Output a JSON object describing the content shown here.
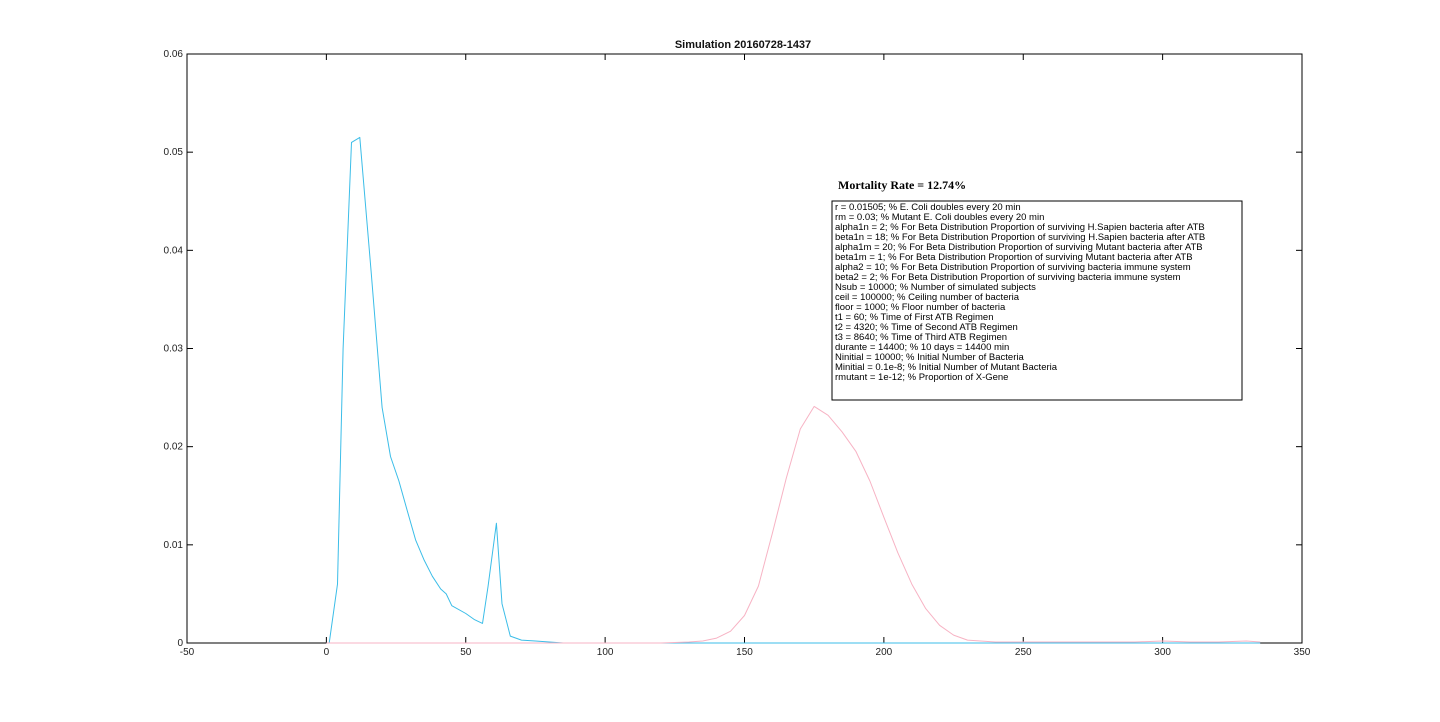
{
  "chart_data": {
    "type": "line",
    "title": "Simulation 20160728-1437",
    "xlabel": "",
    "ylabel": "",
    "xlim": [
      -50,
      350
    ],
    "ylim": [
      0,
      0.06
    ],
    "x_ticks": [
      -50,
      0,
      50,
      100,
      150,
      200,
      250,
      300,
      350
    ],
    "x_tick_labels": [
      "-50",
      "0",
      "50",
      "100",
      "150",
      "200",
      "250",
      "300",
      "350"
    ],
    "y_ticks": [
      0,
      0.01,
      0.02,
      0.03,
      0.04,
      0.05,
      0.06
    ],
    "y_tick_labels": [
      "0",
      "0.01",
      "0.02",
      "0.03",
      "0.04",
      "0.05",
      "0.06"
    ],
    "grid": false,
    "series": [
      {
        "color": "#3bbde8",
        "x": [
          0,
          1,
          4,
          6,
          9,
          12,
          16,
          20,
          23,
          26,
          29,
          32,
          35,
          38,
          41,
          43,
          45,
          50,
          53,
          56,
          58,
          61,
          63,
          66,
          70,
          75,
          80,
          85,
          90,
          100,
          150,
          200,
          250,
          300,
          335
        ],
        "y": [
          0,
          0,
          0.006,
          0.03,
          0.051,
          0.0515,
          0.038,
          0.024,
          0.019,
          0.0165,
          0.0135,
          0.0105,
          0.0085,
          0.0068,
          0.0055,
          0.005,
          0.0038,
          0.003,
          0.0024,
          0.002,
          0.0058,
          0.0122,
          0.004,
          0.0007,
          0.0003,
          0.0002,
          0.0001,
          0,
          0,
          0,
          0,
          0,
          0,
          0,
          0
        ]
      },
      {
        "color": "#f7b3c4",
        "x": [
          0,
          120,
          130,
          135,
          140,
          145,
          150,
          155,
          160,
          165,
          170,
          175,
          180,
          185,
          190,
          195,
          200,
          205,
          210,
          215,
          220,
          225,
          230,
          240,
          250,
          260,
          270,
          280,
          290,
          300,
          310,
          320,
          330,
          335
        ],
        "y": [
          0,
          0,
          0.0001,
          0.0002,
          0.0005,
          0.0012,
          0.0028,
          0.0058,
          0.0112,
          0.0168,
          0.0218,
          0.0241,
          0.0232,
          0.0215,
          0.0195,
          0.0165,
          0.0128,
          0.0092,
          0.006,
          0.0035,
          0.0018,
          0.0008,
          0.0003,
          0.0001,
          0.0001,
          0.0001,
          0.0001,
          0.0001,
          0.0001,
          0.0002,
          0.0001,
          0.0001,
          0.0002,
          0.0001
        ]
      }
    ],
    "annotations": {
      "mortality_text": "Mortality Rate = 12.74%",
      "parameters": [
        "r = 0.01505; % E. Coli doubles every 20 min",
        "rm = 0.03; % Mutant E. Coli doubles every 20 min",
        "alpha1n = 2; % For Beta Distribution Proportion of surviving H.Sapien bacteria after ATB",
        "beta1n = 18; % For Beta Distribution Proportion of surviving H.Sapien bacteria after ATB",
        "alpha1m = 20; % For Beta Distribution Proportion of surviving Mutant bacteria after ATB",
        "beta1m = 1; % For Beta Distribution Proportion of surviving Mutant bacteria after ATB",
        "alpha2 = 10; % For Beta Distribution Proportion of surviving bacteria immune system",
        "beta2 = 2; % For Beta Distribution Proportion of surviving bacteria immune system",
        "Nsub = 10000; % Number of simulated subjects",
        "ceil = 100000; % Ceiling number of bacteria",
        "floor = 1000; % Floor number of bacteria",
        "t1 = 60; % Time of First ATB Regimen",
        "t2 = 4320; % Time of Second ATB Regimen",
        "t3 = 8640; % Time of Third ATB Regimen",
        "durante = 14400; % 10 days = 14400 min",
        "Ninitial = 10000; % Initial Number of Bacteria",
        "Minitial = 0.1e-8; % Initial Number of Mutant Bacteria",
        "rmutant = 1e-12; % Proportion of X-Gene"
      ]
    }
  }
}
